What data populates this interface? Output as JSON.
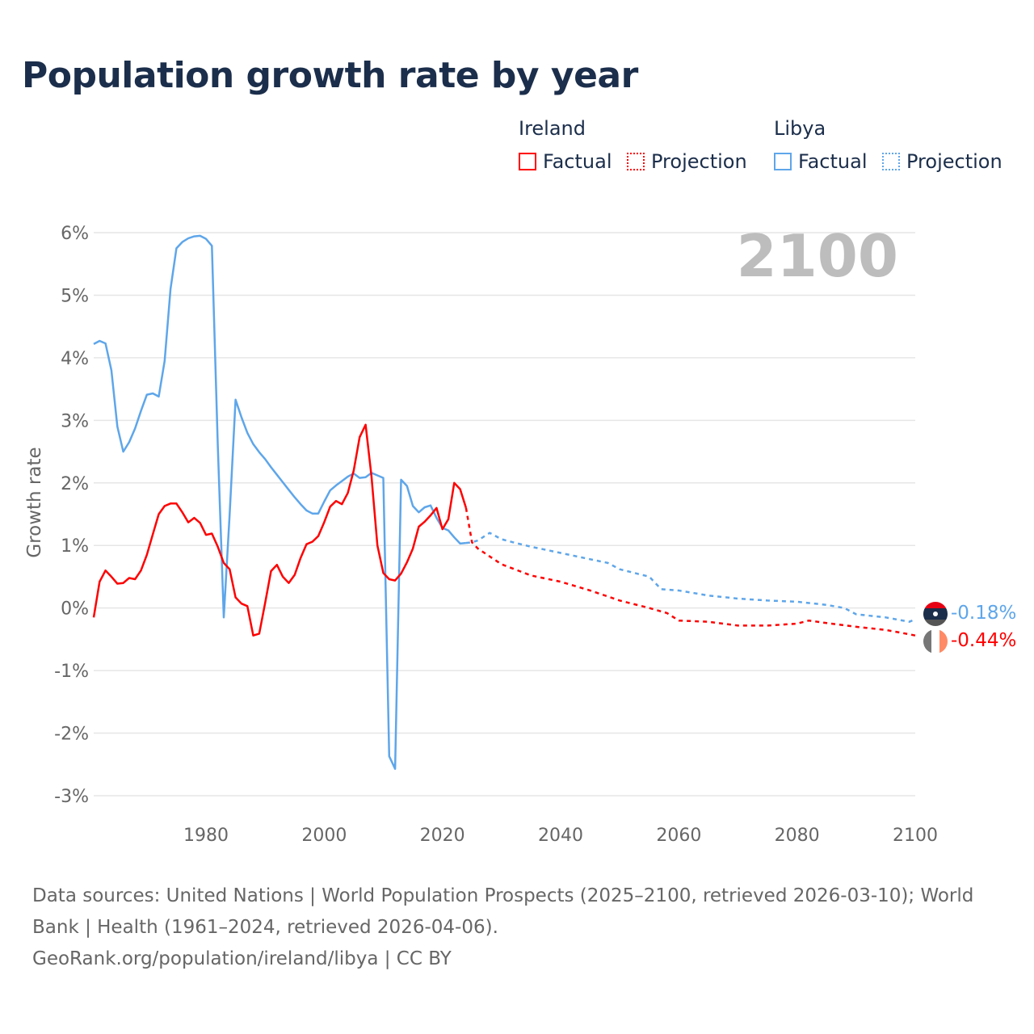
{
  "title": "Population growth rate by year",
  "legend": {
    "groups": [
      {
        "name": "Ireland",
        "factual": "Factual",
        "projection": "Projection",
        "color": "#ff0000"
      },
      {
        "name": "Libya",
        "factual": "Factual",
        "projection": "Projection",
        "color": "#5ea6ea"
      }
    ]
  },
  "year_label": "2100",
  "end_labels": {
    "libya": "-0.18%",
    "ireland": "-0.44%"
  },
  "footer": {
    "line1": "Data sources: United Nations | World Population Prospects (2025–2100, retrieved 2026-03-10); World Bank | Health (1961–2024, retrieved 2026-04-06).",
    "line2": "GeoRank.org/population/ireland/libya | CC BY"
  },
  "chart_data": {
    "type": "line",
    "title": "Population growth rate by year",
    "xlabel": "",
    "ylabel": "Growth rate",
    "xlim": [
      1961,
      2100
    ],
    "ylim": [
      -3,
      6
    ],
    "xticks": [
      "1980",
      "2000",
      "2020",
      "2040",
      "2060",
      "2080",
      "2100"
    ],
    "yticks": [
      "6%",
      "5%",
      "4%",
      "3%",
      "2%",
      "1%",
      "0%",
      "-1%",
      "-2%",
      "-3%"
    ],
    "grid": true,
    "legend_position": "top-right",
    "series": [
      {
        "name": "Libya Factual",
        "color": "#5ea6ea",
        "dash": false,
        "x_start": 1961,
        "values": [
          4.22,
          4.27,
          4.23,
          3.8,
          2.9,
          2.5,
          2.65,
          2.87,
          3.15,
          3.41,
          3.43,
          3.38,
          3.95,
          5.1,
          5.75,
          5.85,
          5.91,
          5.94,
          5.95,
          5.9,
          5.79,
          2.6,
          -0.15,
          1.5,
          3.33,
          3.05,
          2.8,
          2.62,
          2.49,
          2.38,
          2.25,
          2.13,
          2.01,
          1.89,
          1.77,
          1.66,
          1.56,
          1.51,
          1.51,
          1.7,
          1.88,
          1.96,
          2.03,
          2.1,
          2.15,
          2.08,
          2.09,
          2.16,
          2.12,
          2.08,
          -2.37,
          -2.57,
          2.05,
          1.95,
          1.63,
          1.53,
          1.61,
          1.64,
          1.44,
          1.28,
          1.24,
          1.13,
          1.03,
          1.04
        ]
      },
      {
        "name": "Libya Projection",
        "color": "#5ea6ea",
        "dash": true,
        "x": [
          2024,
          2025,
          2026,
          2028,
          2030,
          2032,
          2035,
          2040,
          2045,
          2048,
          2050,
          2055,
          2057,
          2060,
          2065,
          2070,
          2075,
          2080,
          2085,
          2088,
          2090,
          2095,
          2099,
          2100
        ],
        "values": [
          1.04,
          1.05,
          1.08,
          1.2,
          1.1,
          1.05,
          0.98,
          0.88,
          0.78,
          0.72,
          0.62,
          0.5,
          0.3,
          0.28,
          0.2,
          0.15,
          0.12,
          0.1,
          0.05,
          0.0,
          -0.1,
          -0.15,
          -0.22,
          -0.18
        ]
      },
      {
        "name": "Ireland Factual",
        "color": "#ff0000",
        "dash": false,
        "x_start": 1961,
        "values": [
          -0.15,
          0.42,
          0.6,
          0.5,
          0.39,
          0.4,
          0.48,
          0.46,
          0.6,
          0.85,
          1.18,
          1.5,
          1.63,
          1.67,
          1.67,
          1.53,
          1.37,
          1.44,
          1.36,
          1.17,
          1.19,
          0.98,
          0.72,
          0.62,
          0.17,
          0.07,
          0.03,
          -0.44,
          -0.41,
          0.08,
          0.59,
          0.69,
          0.5,
          0.4,
          0.53,
          0.8,
          1.02,
          1.06,
          1.15,
          1.37,
          1.62,
          1.71,
          1.66,
          1.84,
          2.2,
          2.73,
          2.93,
          2.1,
          1.0,
          0.56,
          0.46,
          0.44,
          0.55,
          0.73,
          0.95,
          1.3,
          1.38,
          1.48,
          1.6,
          1.26,
          1.42,
          2.0,
          1.9,
          1.6
        ]
      },
      {
        "name": "Ireland Projection",
        "color": "#ff0000",
        "dash": true,
        "x": [
          2024,
          2025,
          2026,
          2030,
          2035,
          2040,
          2045,
          2050,
          2055,
          2058,
          2060,
          2065,
          2070,
          2075,
          2080,
          2082,
          2085,
          2090,
          2095,
          2099,
          2100
        ],
        "values": [
          1.6,
          1.05,
          0.95,
          0.7,
          0.52,
          0.42,
          0.28,
          0.12,
          0.0,
          -0.08,
          -0.2,
          -0.22,
          -0.28,
          -0.28,
          -0.25,
          -0.2,
          -0.24,
          -0.3,
          -0.35,
          -0.42,
          -0.44
        ]
      }
    ]
  }
}
